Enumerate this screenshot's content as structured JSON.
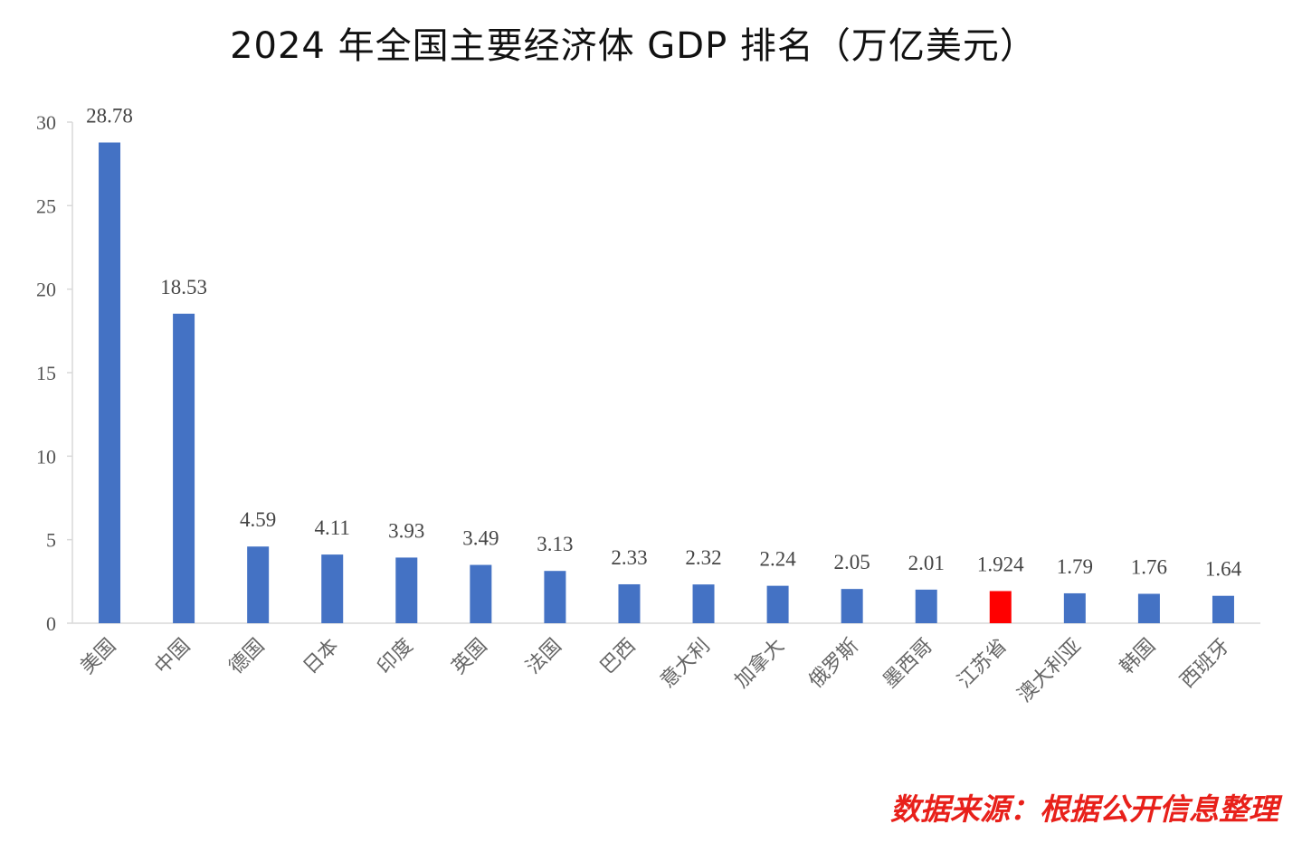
{
  "title": "2024 年全国主要经济体 GDP 排名（万亿美元）",
  "source": "数据来源：根据公开信息整理",
  "colors": {
    "bar": "#4472c4",
    "highlight": "#ff0000",
    "axis": "#d9d9d9"
  },
  "chart_data": {
    "type": "bar",
    "categories": [
      "美国",
      "中国",
      "德国",
      "日本",
      "印度",
      "英国",
      "法国",
      "巴西",
      "意大利",
      "加拿大",
      "俄罗斯",
      "墨西哥",
      "江苏省",
      "澳大利亚",
      "韩国",
      "西班牙"
    ],
    "values": [
      28.78,
      18.53,
      4.59,
      4.11,
      3.93,
      3.49,
      3.13,
      2.33,
      2.32,
      2.24,
      2.05,
      2.01,
      1.924,
      1.79,
      1.76,
      1.64
    ],
    "value_labels": [
      "28.78",
      "18.53",
      "4.59",
      "4.11",
      "3.93",
      "3.49",
      "3.13",
      "2.33",
      "2.32",
      "2.24",
      "2.05",
      "2.01",
      "1.924",
      "1.79",
      "1.76",
      "1.64"
    ],
    "highlight_category": "江苏省",
    "yticks": [
      "0",
      "5",
      "10",
      "15",
      "20",
      "25",
      "30"
    ],
    "ylim": [
      0,
      30
    ],
    "grid": false,
    "legend": false
  }
}
